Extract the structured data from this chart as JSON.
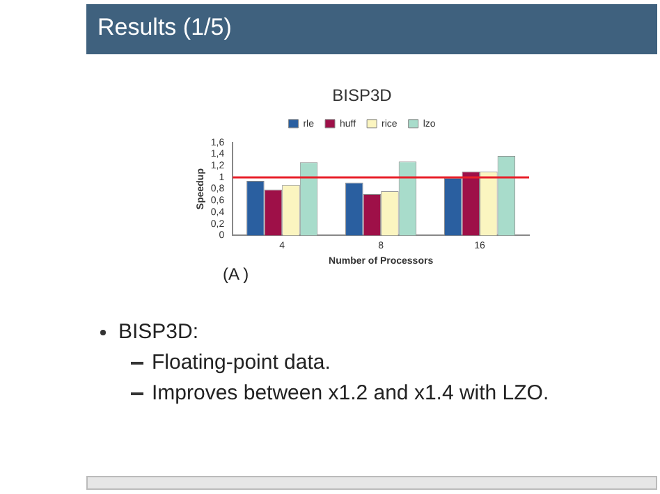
{
  "chart_data": {
    "type": "bar",
    "title": "BISP3D",
    "xlabel": "Number of Processors",
    "ylabel": "Speedup",
    "categories": [
      "4",
      "8",
      "16"
    ],
    "series": [
      {
        "name": "rle",
        "color": "#2a5fa0",
        "values": [
          0.94,
          0.91,
          0.99
        ]
      },
      {
        "name": "huff",
        "color": "#9e1048",
        "values": [
          0.79,
          0.71,
          1.1
        ]
      },
      {
        "name": "rice",
        "color": "#fbf5c0",
        "values": [
          0.87,
          0.76,
          1.1
        ]
      },
      {
        "name": "lzo",
        "color": "#a8dccb",
        "values": [
          1.26,
          1.27,
          1.37
        ]
      }
    ],
    "ylim": [
      0,
      1.6
    ],
    "yticks": [
      0,
      {
        "value": 0.2,
        "label": "0,2"
      },
      {
        "value": 0.4,
        "label": "0,4"
      },
      {
        "value": 0.6,
        "label": "0,6"
      },
      {
        "value": 0.8,
        "label": "0,8"
      },
      1,
      {
        "value": 1.2,
        "label": "1,2"
      },
      {
        "value": 1.4,
        "label": "1,4"
      },
      {
        "value": 1.6,
        "label": "1,6"
      }
    ],
    "ref_lines": [
      {
        "axis": "y",
        "value": 1,
        "color": "#e8202a"
      }
    ],
    "grid": false,
    "legend": "top",
    "annotations": [
      "Results (1/5)",
      "(A )",
      "BISP3D:",
      "Floating-point data.",
      "Improves between x1.2 and x1.4 with LZO."
    ]
  }
}
